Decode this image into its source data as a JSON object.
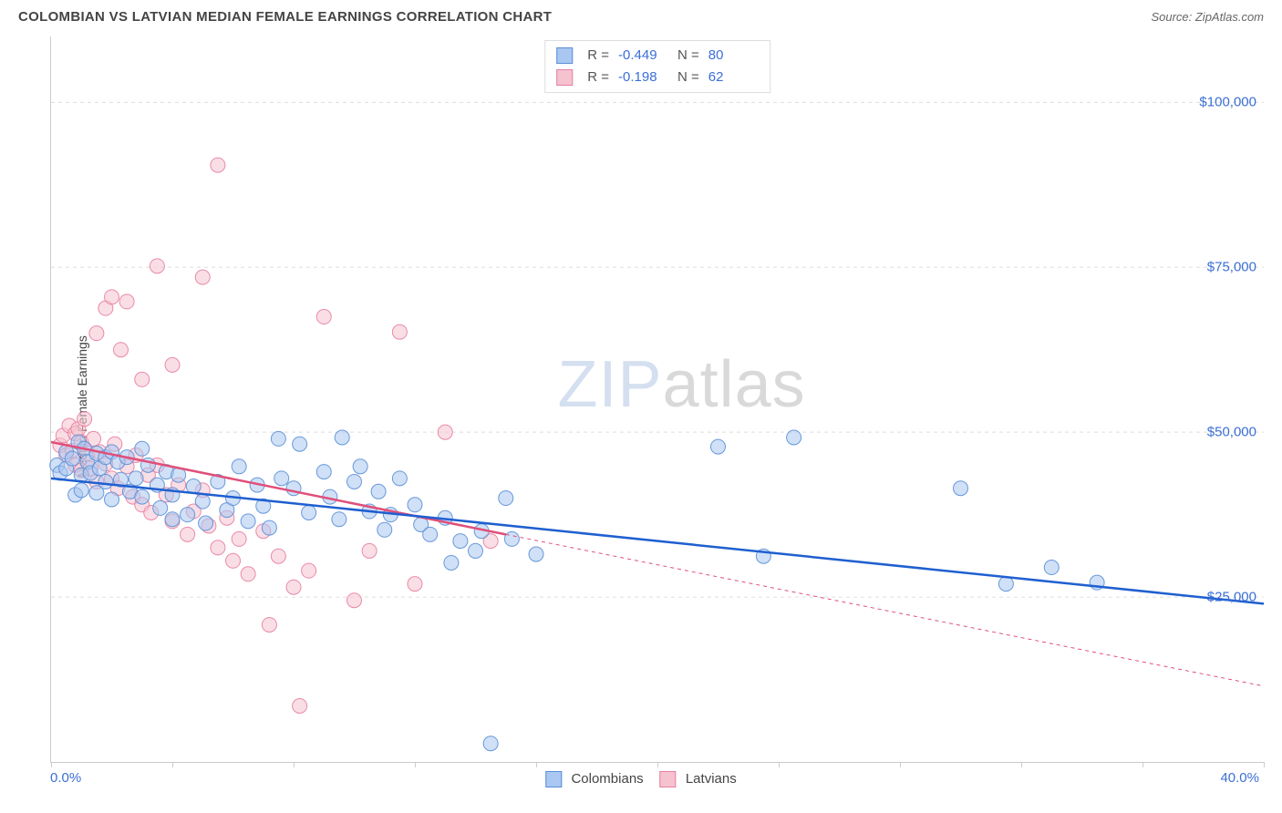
{
  "title": "COLOMBIAN VS LATVIAN MEDIAN FEMALE EARNINGS CORRELATION CHART",
  "source": "Source: ZipAtlas.com",
  "ylabel": "Median Female Earnings",
  "watermark": {
    "part1": "ZIP",
    "part2": "atlas"
  },
  "chart": {
    "type": "scatter",
    "xlim": [
      0,
      40
    ],
    "ylim": [
      0,
      110000
    ],
    "background_color": "#ffffff",
    "grid_color": "#dddddd",
    "grid_dash": "4,4",
    "axis_color": "#cccccc",
    "ytick_values": [
      25000,
      50000,
      75000,
      100000
    ],
    "ytick_labels": [
      "$25,000",
      "$50,000",
      "$75,000",
      "$100,000"
    ],
    "ytick_color": "#3b6fd6",
    "ytick_fontsize": 15,
    "xtick_values": [
      0,
      4,
      8,
      12,
      16,
      20,
      24,
      28,
      32,
      36,
      40
    ],
    "xmin_label": "0.0%",
    "xmax_label": "40.0%",
    "xtick_color": "#3b6fd6",
    "marker_radius": 8,
    "marker_opacity": 0.55,
    "marker_stroke_opacity": 0.9,
    "trend_line_width": 2.5,
    "series": [
      {
        "name": "Colombians",
        "fill_color": "#a9c7f0",
        "stroke_color": "#5a8fd6",
        "trend_color": "#1f5fd0",
        "trend_dash_extend": "none",
        "R": "-0.449",
        "N": "80",
        "trend": {
          "x1": 0,
          "y1": 43000,
          "x2": 40,
          "y2": 24000
        },
        "points": [
          [
            0.2,
            45000
          ],
          [
            0.3,
            43800
          ],
          [
            0.5,
            47000
          ],
          [
            0.5,
            44500
          ],
          [
            0.7,
            46000
          ],
          [
            0.8,
            40500
          ],
          [
            0.9,
            48500
          ],
          [
            1.0,
            43500
          ],
          [
            1.0,
            41200
          ],
          [
            1.1,
            47500
          ],
          [
            1.2,
            45500
          ],
          [
            1.3,
            43800
          ],
          [
            1.5,
            46800
          ],
          [
            1.5,
            40800
          ],
          [
            1.6,
            44500
          ],
          [
            1.8,
            46200
          ],
          [
            1.8,
            42500
          ],
          [
            2.0,
            47000
          ],
          [
            2.0,
            39800
          ],
          [
            2.2,
            45500
          ],
          [
            2.3,
            42800
          ],
          [
            2.5,
            46200
          ],
          [
            2.6,
            41000
          ],
          [
            2.8,
            43000
          ],
          [
            3.0,
            47500
          ],
          [
            3.0,
            40200
          ],
          [
            3.2,
            45000
          ],
          [
            3.5,
            42000
          ],
          [
            3.6,
            38500
          ],
          [
            3.8,
            44000
          ],
          [
            4.0,
            36800
          ],
          [
            4.0,
            40500
          ],
          [
            4.2,
            43500
          ],
          [
            4.5,
            37500
          ],
          [
            4.7,
            41800
          ],
          [
            5.0,
            39500
          ],
          [
            5.1,
            36200
          ],
          [
            5.5,
            42500
          ],
          [
            5.8,
            38200
          ],
          [
            6.0,
            40000
          ],
          [
            6.2,
            44800
          ],
          [
            6.5,
            36500
          ],
          [
            6.8,
            42000
          ],
          [
            7.0,
            38800
          ],
          [
            7.2,
            35500
          ],
          [
            7.5,
            49000
          ],
          [
            7.6,
            43000
          ],
          [
            8.0,
            41500
          ],
          [
            8.2,
            48200
          ],
          [
            8.5,
            37800
          ],
          [
            9.0,
            44000
          ],
          [
            9.2,
            40200
          ],
          [
            9.5,
            36800
          ],
          [
            9.6,
            49200
          ],
          [
            10.0,
            42500
          ],
          [
            10.2,
            44800
          ],
          [
            10.5,
            38000
          ],
          [
            10.8,
            41000
          ],
          [
            11.0,
            35200
          ],
          [
            11.2,
            37500
          ],
          [
            11.5,
            43000
          ],
          [
            12.0,
            39000
          ],
          [
            12.2,
            36000
          ],
          [
            12.5,
            34500
          ],
          [
            13.0,
            37000
          ],
          [
            13.2,
            30200
          ],
          [
            13.5,
            33500
          ],
          [
            14.0,
            32000
          ],
          [
            14.2,
            35000
          ],
          [
            14.5,
            2800
          ],
          [
            15.0,
            40000
          ],
          [
            15.2,
            33800
          ],
          [
            16.0,
            31500
          ],
          [
            22.0,
            47800
          ],
          [
            23.5,
            31200
          ],
          [
            24.5,
            49200
          ],
          [
            30.0,
            41500
          ],
          [
            31.5,
            27000
          ],
          [
            33.0,
            29500
          ],
          [
            34.5,
            27200
          ]
        ]
      },
      {
        "name": "Latvians",
        "fill_color": "#f5c2d0",
        "stroke_color": "#e77fa0",
        "trend_color": "#e04f7a",
        "trend_dash_extend": "4,4",
        "R": "-0.198",
        "N": "62",
        "trend_solid": {
          "x1": 0,
          "y1": 48500,
          "x2": 15,
          "y2": 34500
        },
        "trend_dashed": {
          "x1": 15,
          "y1": 34500,
          "x2": 40,
          "y2": 11500
        },
        "points": [
          [
            0.3,
            48000
          ],
          [
            0.4,
            49500
          ],
          [
            0.5,
            46500
          ],
          [
            0.6,
            51000
          ],
          [
            0.7,
            47200
          ],
          [
            0.8,
            49800
          ],
          [
            0.8,
            45000
          ],
          [
            0.9,
            50500
          ],
          [
            1.0,
            44200
          ],
          [
            1.0,
            48500
          ],
          [
            1.1,
            52000
          ],
          [
            1.2,
            46800
          ],
          [
            1.3,
            44500
          ],
          [
            1.4,
            49000
          ],
          [
            1.5,
            42500
          ],
          [
            1.5,
            65000
          ],
          [
            1.6,
            47000
          ],
          [
            1.8,
            45200
          ],
          [
            1.8,
            68800
          ],
          [
            2.0,
            43000
          ],
          [
            2.0,
            70500
          ],
          [
            2.1,
            48200
          ],
          [
            2.2,
            41500
          ],
          [
            2.3,
            62500
          ],
          [
            2.5,
            44800
          ],
          [
            2.5,
            69800
          ],
          [
            2.7,
            40200
          ],
          [
            2.8,
            46500
          ],
          [
            3.0,
            39000
          ],
          [
            3.0,
            58000
          ],
          [
            3.2,
            43500
          ],
          [
            3.3,
            37800
          ],
          [
            3.5,
            45000
          ],
          [
            3.5,
            75200
          ],
          [
            3.8,
            40500
          ],
          [
            4.0,
            36500
          ],
          [
            4.0,
            60200
          ],
          [
            4.2,
            42000
          ],
          [
            4.5,
            34500
          ],
          [
            4.7,
            38000
          ],
          [
            5.0,
            73500
          ],
          [
            5.0,
            41200
          ],
          [
            5.2,
            35800
          ],
          [
            5.5,
            32500
          ],
          [
            5.5,
            90500
          ],
          [
            5.8,
            37000
          ],
          [
            6.0,
            30500
          ],
          [
            6.2,
            33800
          ],
          [
            6.5,
            28500
          ],
          [
            7.0,
            35000
          ],
          [
            7.2,
            20800
          ],
          [
            7.5,
            31200
          ],
          [
            8.0,
            26500
          ],
          [
            8.2,
            8500
          ],
          [
            8.5,
            29000
          ],
          [
            9.0,
            67500
          ],
          [
            10.0,
            24500
          ],
          [
            10.5,
            32000
          ],
          [
            11.5,
            65200
          ],
          [
            12.0,
            27000
          ],
          [
            13.0,
            50000
          ],
          [
            14.5,
            33500
          ]
        ]
      }
    ]
  },
  "legend": {
    "series1_label": "Colombians",
    "series2_label": "Latvians",
    "R_label": "R =",
    "N_label": "N ="
  }
}
